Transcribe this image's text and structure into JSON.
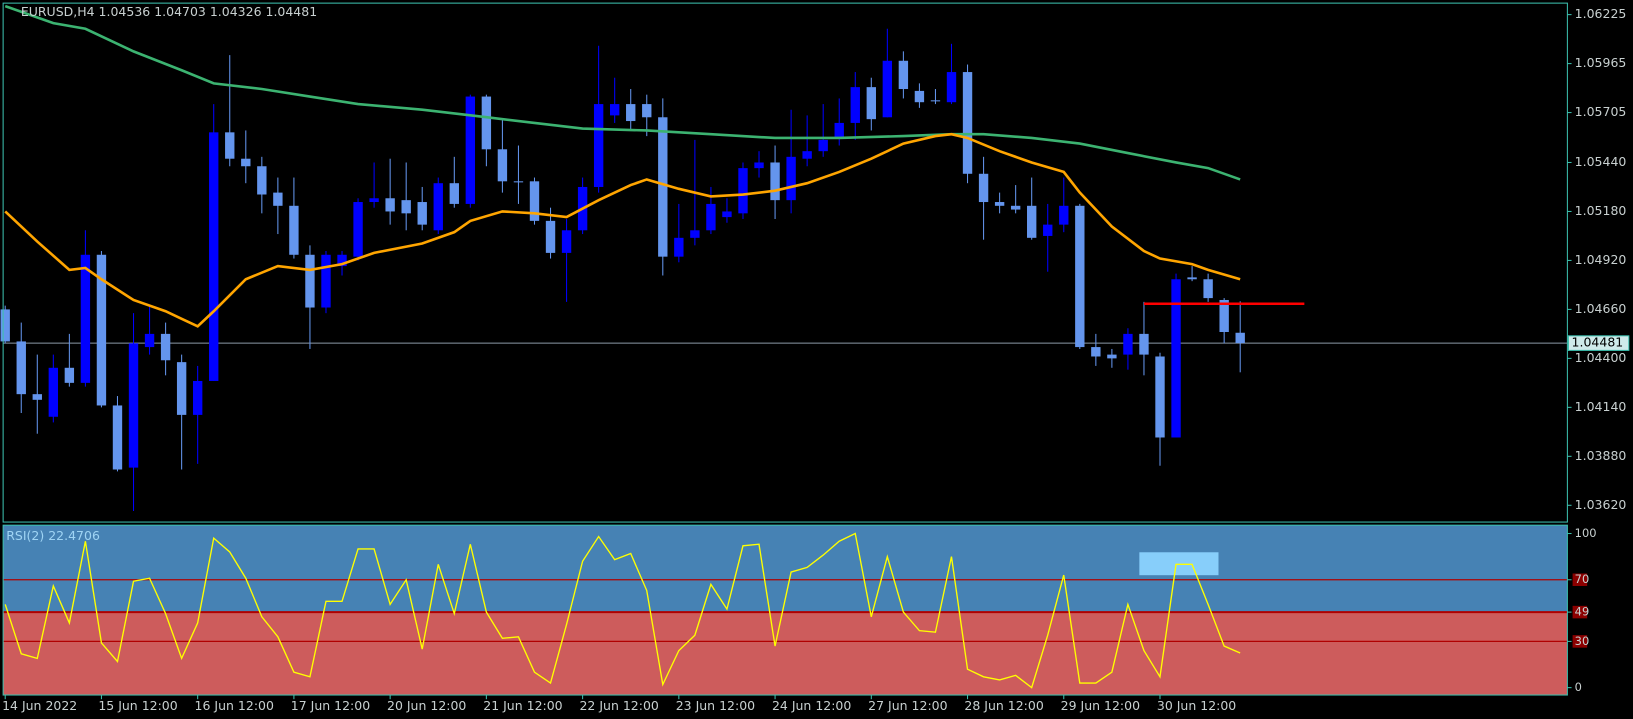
{
  "chart_data": [
    {
      "type": "candlestick",
      "title": "EURUSD,H4  1.04536 1.04703 1.04326 1.04481",
      "up_color": "#0000ff",
      "down_color": "#6495ed",
      "xlim": [
        -0.13,
        97.4
      ],
      "ylim": [
        1.03531,
        1.06286
      ],
      "yticks": [
        1.06225,
        1.05965,
        1.05705,
        {
          "value": 1.0544,
          "label": "1.05440"
        },
        {
          "value": 1.0518,
          "label": "1.05180"
        },
        {
          "value": 1.0492,
          "label": "1.04920"
        },
        {
          "value": 1.0466,
          "label": "1.04660"
        },
        {
          "value": 1.044,
          "label": "1.04400"
        },
        {
          "value": 1.0414,
          "label": "1.04140"
        },
        {
          "value": 1.0388,
          "label": "1.03880"
        },
        {
          "value": 1.0362,
          "label": "1.03620"
        }
      ],
      "xticks": [
        {
          "value": 0,
          "label": "14 Jun 2022"
        },
        {
          "value": 6,
          "label": "15 Jun 12:00"
        },
        {
          "value": 12,
          "label": "16 Jun 12:00"
        },
        {
          "value": 18,
          "label": "17 Jun 12:00"
        },
        {
          "value": 24,
          "label": "20 Jun 12:00"
        },
        {
          "value": 30,
          "label": "21 Jun 12:00"
        },
        {
          "value": 36,
          "label": "22 Jun 12:00"
        },
        {
          "value": 42,
          "label": "23 Jun 12:00"
        },
        {
          "value": 48,
          "label": "24 Jun 12:00"
        },
        {
          "value": 54,
          "label": "27 Jun 12:00"
        },
        {
          "value": 60,
          "label": "28 Jun 12:00"
        },
        {
          "value": 66,
          "label": "29 Jun 12:00"
        },
        {
          "value": 72,
          "label": "30 Jun 12:00"
        }
      ],
      "open": [
        1.0466,
        1.0449,
        1.0421,
        1.0409,
        1.0435,
        1.0427,
        1.0495,
        1.0415,
        1.0382,
        1.0446,
        1.0453,
        1.0438,
        1.041,
        1.0428,
        1.056,
        1.0546,
        1.0542,
        1.0528,
        1.0521,
        1.0495,
        1.0467,
        1.0489,
        1.0494,
        1.0523,
        1.0525,
        1.0524,
        1.0523,
        1.0508,
        1.0533,
        1.0522,
        1.0579,
        1.0551,
        1.0534,
        1.0534,
        1.0513,
        1.0496,
        1.0508,
        1.0531,
        1.0569,
        1.0575,
        1.0575,
        1.0568,
        1.0494,
        1.0504,
        1.0508,
        1.0515,
        1.0517,
        1.0541,
        1.0544,
        1.0524,
        1.0546,
        1.055,
        1.0557,
        1.0565,
        1.0584,
        1.0568,
        1.0598,
        1.0582,
        1.0577,
        1.0576,
        1.0592,
        1.0538,
        1.0523,
        1.0521,
        1.0521,
        1.0505,
        1.0511,
        1.0521,
        1.0446,
        1.0442,
        1.0442,
        1.0453,
        1.0441,
        1.0398,
        1.0483,
        1.0482,
        1.0471,
        1.04536
      ],
      "high": [
        1.0468,
        1.0459,
        1.0442,
        1.0442,
        1.0453,
        1.0508,
        1.0497,
        1.042,
        1.0464,
        1.0468,
        1.0459,
        1.0442,
        1.0436,
        1.0575,
        1.0601,
        1.0561,
        1.0547,
        1.0536,
        1.0536,
        1.05,
        1.0497,
        1.0497,
        1.0525,
        1.0544,
        1.0546,
        1.0544,
        1.0531,
        1.0536,
        1.0547,
        1.058,
        1.058,
        1.0567,
        1.0553,
        1.0536,
        1.052,
        1.0514,
        1.0536,
        1.0606,
        1.0589,
        1.0583,
        1.058,
        1.0578,
        1.0522,
        1.0556,
        1.0531,
        1.0525,
        1.0544,
        1.055,
        1.0553,
        1.0572,
        1.0569,
        1.0575,
        1.0578,
        1.0592,
        1.0589,
        1.0615,
        1.0603,
        1.0586,
        1.0583,
        1.0607,
        1.0596,
        1.0547,
        1.0528,
        1.0532,
        1.0536,
        1.0522,
        1.0536,
        1.0522,
        1.0453,
        1.0445,
        1.0456,
        1.047,
        1.0443,
        1.0485,
        1.0489,
        1.0485,
        1.0472,
        1.04703
      ],
      "low": [
        1.0448,
        1.0411,
        1.04,
        1.0406,
        1.0425,
        1.0425,
        1.0414,
        1.038,
        1.0359,
        1.0442,
        1.0431,
        1.0381,
        1.0384,
        1.0428,
        1.0542,
        1.0533,
        1.0517,
        1.0506,
        1.0493,
        1.0445,
        1.0464,
        1.0484,
        1.0492,
        1.052,
        1.0511,
        1.0508,
        1.0508,
        1.0506,
        1.052,
        1.052,
        1.0542,
        1.0528,
        1.0522,
        1.0511,
        1.0493,
        1.047,
        1.0506,
        1.0528,
        1.0565,
        1.0561,
        1.0558,
        1.0484,
        1.0491,
        1.05,
        1.0506,
        1.0512,
        1.0514,
        1.0536,
        1.0514,
        1.0517,
        1.0542,
        1.0547,
        1.0553,
        1.0556,
        1.0561,
        1.0568,
        1.0578,
        1.0573,
        1.0575,
        1.0575,
        1.0533,
        1.0503,
        1.0517,
        1.0517,
        1.0503,
        1.0486,
        1.0507,
        1.0445,
        1.0436,
        1.0435,
        1.0434,
        1.0431,
        1.0383,
        1.0398,
        1.0481,
        1.047,
        1.0448,
        1.04326
      ],
      "close": [
        1.0449,
        1.0421,
        1.0418,
        1.0435,
        1.0427,
        1.0495,
        1.0415,
        1.0381,
        1.0448,
        1.0453,
        1.0439,
        1.041,
        1.0428,
        1.056,
        1.0546,
        1.0542,
        1.0527,
        1.0521,
        1.0495,
        1.0467,
        1.0495,
        1.0495,
        1.0523,
        1.0525,
        1.0518,
        1.0517,
        1.0511,
        1.0533,
        1.0522,
        1.0579,
        1.0551,
        1.0534,
        1.0534,
        1.0513,
        1.0496,
        1.0508,
        1.0531,
        1.0575,
        1.0575,
        1.0566,
        1.0568,
        1.0494,
        1.0504,
        1.0508,
        1.0522,
        1.0518,
        1.0541,
        1.0544,
        1.0524,
        1.0547,
        1.055,
        1.0556,
        1.0565,
        1.0584,
        1.0567,
        1.0598,
        1.0583,
        1.0576,
        1.0577,
        1.0592,
        1.0538,
        1.0523,
        1.0521,
        1.0519,
        1.0504,
        1.0511,
        1.0521,
        1.0446,
        1.0441,
        1.044,
        1.0453,
        1.0442,
        1.0398,
        1.0482,
        1.0482,
        1.0472,
        1.0454,
        1.04481
      ],
      "lines": [
        {
          "color": "#3cb371",
          "x": [
            0,
            3,
            5,
            8,
            11,
            13,
            16,
            19,
            22,
            26,
            30,
            33,
            36,
            40,
            44,
            48,
            52,
            56,
            59,
            61,
            64,
            67,
            70,
            73,
            75,
            77
          ],
          "values": [
            1.0627,
            1.0618,
            1.0615,
            1.0603,
            1.0593,
            1.0586,
            1.0583,
            1.0579,
            1.0575,
            1.0572,
            1.0568,
            1.0565,
            1.0562,
            1.0561,
            1.0559,
            1.0557,
            1.0557,
            1.0558,
            1.0559,
            1.0559,
            1.0557,
            1.0554,
            1.0549,
            1.0544,
            1.0541,
            1.0535
          ]
        },
        {
          "color": "#ffa500",
          "x": [
            0,
            2,
            4,
            5,
            6,
            8,
            10,
            11,
            12,
            13,
            15,
            17,
            19,
            21,
            23,
            26,
            28,
            29,
            31,
            33,
            35,
            37,
            39,
            40,
            42,
            44,
            46,
            48,
            50,
            52,
            54,
            56,
            58,
            59,
            60,
            62,
            64,
            66,
            67,
            69,
            71,
            72,
            74,
            75,
            77
          ],
          "values": [
            1.0518,
            1.0502,
            1.0487,
            1.0488,
            1.0482,
            1.0471,
            1.0465,
            1.0461,
            1.0457,
            1.0465,
            1.0482,
            1.0489,
            1.0487,
            1.049,
            1.0496,
            1.0501,
            1.0507,
            1.0513,
            1.0518,
            1.0517,
            1.0515,
            1.0524,
            1.0532,
            1.0535,
            1.053,
            1.0526,
            1.0527,
            1.0529,
            1.0533,
            1.0539,
            1.0546,
            1.0554,
            1.0558,
            1.0559,
            1.0557,
            1.055,
            1.0544,
            1.0539,
            1.0528,
            1.051,
            1.0497,
            1.0493,
            1.049,
            1.0487,
            1.0482
          ]
        }
      ],
      "level": {
        "value": 1.0469,
        "x": [
          71,
          81
        ],
        "color": "#ff0000"
      },
      "price_line": 1.04481,
      "price_line_color": "#8c9aa8"
    },
    {
      "type": "line",
      "title": "RSI(2) 22.4706",
      "color": "#ffff00",
      "ylim": [
        -4.8,
        105.4
      ],
      "yticks": [
        100,
        70,
        49,
        30,
        0
      ],
      "levels": [
        70,
        49,
        30
      ],
      "level_color": "#b00000",
      "upper_color": "#4682b4",
      "lower_color": "#cd5c5c",
      "values": [
        54,
        22,
        19,
        66,
        42,
        95,
        29,
        17,
        69,
        71,
        48,
        19,
        42,
        97,
        88,
        71,
        46,
        33,
        10,
        7,
        56,
        56,
        90,
        90,
        54,
        70,
        25,
        80,
        48,
        93,
        49,
        32,
        33,
        10,
        3,
        41,
        82,
        98,
        83,
        87,
        63,
        2,
        24,
        34,
        67,
        51,
        92,
        93,
        27,
        75,
        78,
        86,
        95,
        100,
        46,
        85,
        49,
        37,
        36,
        85,
        12,
        7,
        5,
        8,
        0,
        34,
        73,
        3,
        3,
        10,
        54,
        24,
        7,
        80,
        80,
        54,
        27,
        22.4706
      ]
    }
  ]
}
